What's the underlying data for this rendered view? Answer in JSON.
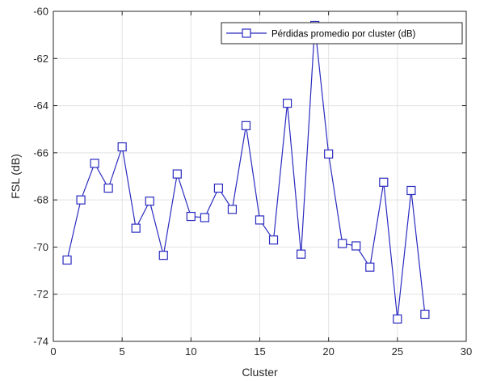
{
  "chart_data": {
    "type": "line",
    "title": "",
    "xlabel": "Cluster",
    "ylabel": "FSL (dB)",
    "xlim": [
      0,
      30
    ],
    "ylim": [
      -74,
      -60
    ],
    "xticks": [
      0,
      5,
      10,
      15,
      20,
      25,
      30
    ],
    "yticks": [
      -74,
      -72,
      -70,
      -68,
      -66,
      -64,
      -62,
      -60
    ],
    "grid": true,
    "legend_position": "top-right",
    "series": [
      {
        "name": "Pérdidas promedio por cluster (dB)",
        "color": "#2b2bc0",
        "marker": "square",
        "x": [
          1,
          2,
          3,
          4,
          5,
          6,
          7,
          8,
          9,
          10,
          11,
          12,
          13,
          14,
          15,
          16,
          17,
          18,
          19,
          20,
          21,
          22,
          23,
          24,
          25,
          26,
          27
        ],
        "values": [
          -70.55,
          -68.0,
          -66.45,
          -67.5,
          -65.75,
          -69.2,
          -68.05,
          -70.35,
          -66.9,
          -68.7,
          -68.75,
          -67.5,
          -68.4,
          -64.85,
          -68.85,
          -69.7,
          -63.9,
          -70.3,
          -60.6,
          -66.05,
          -69.85,
          -69.95,
          -70.85,
          -67.25,
          -73.05,
          -67.6,
          -72.85
        ]
      }
    ]
  }
}
